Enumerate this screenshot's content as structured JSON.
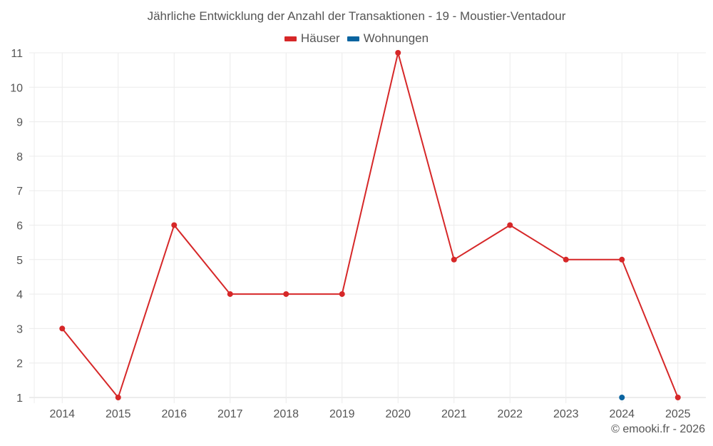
{
  "chart": {
    "title": "Jährliche Entwicklung der Anzahl der Transaktionen - 19 - Moustier-Ventadour",
    "credit": "© emooki.fr - 2026"
  },
  "legend": [
    {
      "label": "Häuser",
      "color": "#d62728"
    },
    {
      "label": "Wohnungen",
      "color": "#0a64a0"
    }
  ],
  "chart_data": {
    "type": "line",
    "title": "Jährliche Entwicklung der Anzahl der Transaktionen - 19 - Moustier-Ventadour",
    "xlabel": "",
    "ylabel": "",
    "categories": [
      "2014",
      "2015",
      "2016",
      "2017",
      "2018",
      "2019",
      "2020",
      "2021",
      "2022",
      "2023",
      "2024",
      "2025"
    ],
    "series": [
      {
        "name": "Häuser",
        "color": "#d62728",
        "values": [
          3,
          1,
          6,
          4,
          4,
          4,
          11,
          5,
          6,
          5,
          5,
          1
        ]
      },
      {
        "name": "Wohnungen",
        "color": "#0a64a0",
        "values": [
          null,
          null,
          null,
          null,
          null,
          null,
          null,
          null,
          null,
          null,
          1,
          null
        ]
      }
    ],
    "yticks": [
      1,
      2,
      3,
      4,
      5,
      6,
      7,
      8,
      9,
      10,
      11
    ],
    "ylim": [
      1,
      11
    ],
    "grid": true,
    "legend_position": "top"
  }
}
